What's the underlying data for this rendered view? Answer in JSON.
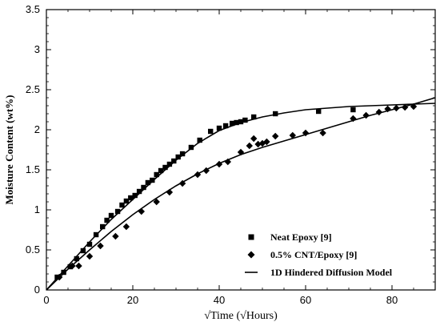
{
  "chart_data": {
    "type": "scatter",
    "title": "",
    "xlabel": "√Time (√Hours)",
    "ylabel": "Moisture Content (wt%)",
    "xlim": [
      0,
      90
    ],
    "ylim": [
      0,
      3.5
    ],
    "x_ticks": [
      0,
      20,
      40,
      60,
      80
    ],
    "y_ticks": [
      0,
      0.5,
      1,
      1.5,
      2,
      2.5,
      3,
      3.5
    ],
    "x_tick_labels": [
      "0",
      "20",
      "40",
      "60",
      "80"
    ],
    "y_tick_labels": [
      "0",
      "0.5",
      "1",
      "1.5",
      "2",
      "2.5",
      "3",
      "3.5"
    ],
    "grid": false,
    "legend_position": "bottom-right",
    "series": [
      {
        "name": "Neat Epoxy [9]",
        "marker": "square",
        "color": "#000000",
        "x": [
          2.5,
          4,
          5.5,
          7,
          8.5,
          10,
          11.5,
          13,
          14,
          15,
          16.5,
          17.5,
          18.5,
          19.5,
          20.5,
          21.5,
          22.5,
          23.5,
          24.5,
          25.5,
          26.5,
          27.5,
          28.5,
          29.5,
          30.5,
          31.5,
          33.5,
          35.5,
          38,
          40,
          41.5,
          43,
          44,
          45,
          46,
          48,
          53,
          63,
          71
        ],
        "y": [
          0.16,
          0.22,
          0.29,
          0.39,
          0.49,
          0.57,
          0.69,
          0.79,
          0.87,
          0.93,
          0.98,
          1.06,
          1.11,
          1.15,
          1.18,
          1.23,
          1.28,
          1.34,
          1.37,
          1.44,
          1.49,
          1.53,
          1.57,
          1.61,
          1.66,
          1.7,
          1.78,
          1.87,
          1.98,
          2.02,
          2.05,
          2.08,
          2.09,
          2.1,
          2.12,
          2.16,
          2.2,
          2.23,
          2.25
        ]
      },
      {
        "name": "0.5% CNT/Epoxy [9]",
        "marker": "diamond",
        "color": "#000000",
        "x": [
          3,
          6,
          7.5,
          10,
          12.5,
          16,
          18.5,
          22,
          25.5,
          28.5,
          31.5,
          35,
          37,
          40,
          42,
          45,
          47,
          48,
          49,
          50,
          51,
          53,
          57,
          60,
          64,
          71,
          74,
          77,
          79,
          81,
          83,
          85
        ],
        "y": [
          0.16,
          0.3,
          0.3,
          0.42,
          0.55,
          0.67,
          0.79,
          0.98,
          1.1,
          1.22,
          1.33,
          1.44,
          1.49,
          1.57,
          1.6,
          1.72,
          1.8,
          1.89,
          1.82,
          1.83,
          1.85,
          1.92,
          1.93,
          1.96,
          1.96,
          2.14,
          2.18,
          2.22,
          2.26,
          2.27,
          2.28,
          2.29
        ]
      },
      {
        "name": "1D Hindered Diffusion Model",
        "marker": "line",
        "color": "#000000",
        "curves": [
          {
            "x": [
              0,
              5,
              10,
              15,
              20,
              25,
              30,
              35,
              40,
              45,
              50,
              55,
              60,
              65,
              70,
              75,
              80,
              85,
              90
            ],
            "y": [
              0,
              0.3,
              0.6,
              0.88,
              1.13,
              1.38,
              1.62,
              1.83,
              1.99,
              2.09,
              2.16,
              2.21,
              2.25,
              2.27,
              2.29,
              2.3,
              2.31,
              2.32,
              2.33
            ]
          },
          {
            "x": [
              0,
              5,
              10,
              15,
              20,
              25,
              30,
              35,
              40,
              45,
              50,
              55,
              60,
              65,
              70,
              75,
              80,
              85,
              90
            ],
            "y": [
              0,
              0.26,
              0.5,
              0.73,
              0.94,
              1.13,
              1.3,
              1.45,
              1.58,
              1.69,
              1.78,
              1.86,
              1.94,
              2.02,
              2.1,
              2.18,
              2.25,
              2.32,
              2.4
            ]
          }
        ]
      }
    ]
  }
}
